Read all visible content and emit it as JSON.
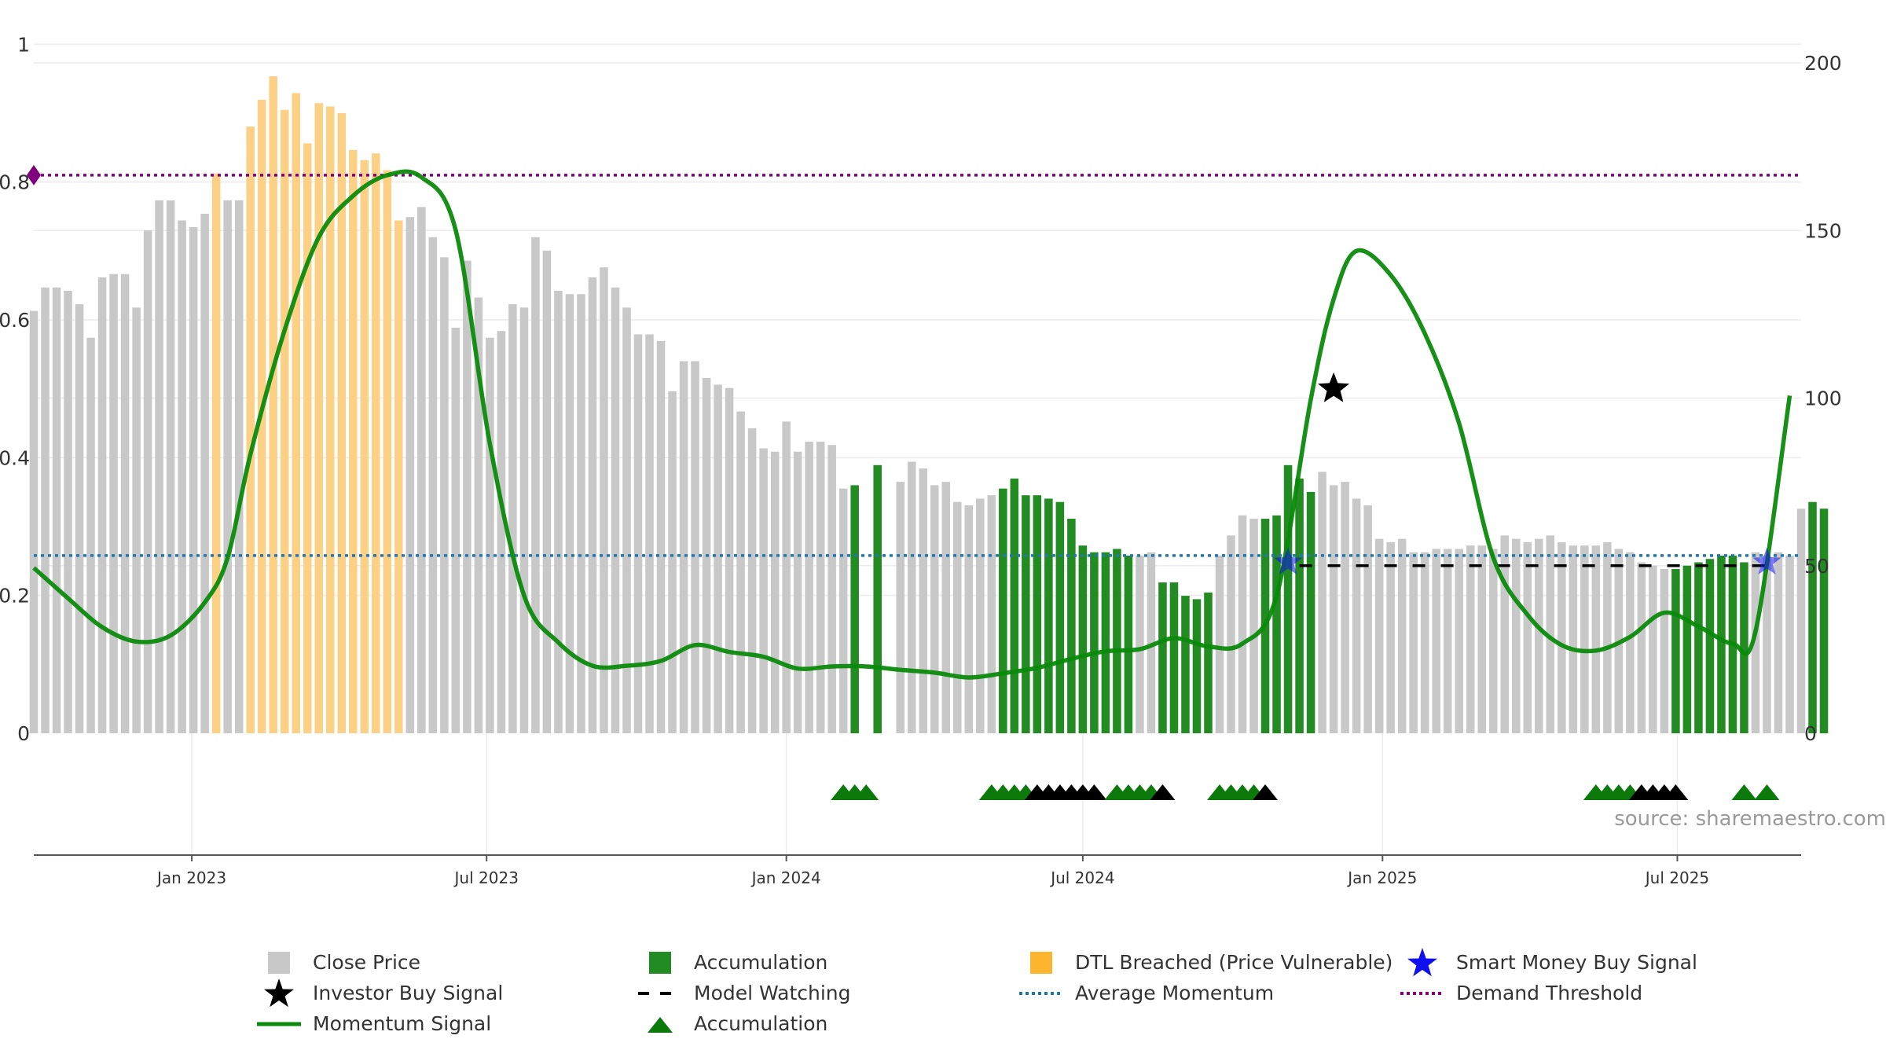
{
  "chart_data": {
    "type": "bar",
    "source": "source: sharemaestro.com",
    "left_axis": {
      "ticks": [
        0,
        0.2,
        0.4,
        0.6,
        0.8,
        1
      ],
      "labels": [
        "0",
        "0.2",
        "0.4",
        "0.6",
        "0.8",
        "1"
      ],
      "range": [
        0,
        0.973
      ]
    },
    "right_axis": {
      "ticks": [
        0,
        50,
        100,
        150,
        200
      ],
      "labels": [
        "0",
        "50",
        "100",
        "150",
        "200"
      ],
      "range": [
        0,
        200
      ]
    },
    "x_ticks": [
      {
        "date": "2023-01-01",
        "label": "Jan 2023"
      },
      {
        "date": "2023-07-01",
        "label": "Jul 2023"
      },
      {
        "date": "2024-01-01",
        "label": "Jan 2024"
      },
      {
        "date": "2024-07-01",
        "label": "Jul 2024"
      },
      {
        "date": "2025-01-01",
        "label": "Jan 2025"
      },
      {
        "date": "2025-07-01",
        "label": "Jul 2025"
      }
    ],
    "x_range": [
      "2022-09-26",
      "2025-09-15"
    ],
    "colors": {
      "close": "#c8c8c8",
      "accumulation": "#228b22",
      "dtl": "#fdd185",
      "momentum": "#0a8a0a",
      "average": "#1f77b4",
      "demand": "#800080",
      "investor": "#000000",
      "smart": "#1010ee",
      "triangle_green": "#0b7a0b",
      "triangle_black": "#000000"
    },
    "close_first_week": "2022-09-26",
    "close_prices": [
      126,
      133,
      133,
      132,
      128,
      118,
      136,
      137,
      137,
      127,
      150,
      159,
      159,
      153,
      151,
      155,
      167,
      159,
      159,
      181,
      189,
      196,
      186,
      191,
      176,
      188,
      187,
      185,
      174,
      171,
      173,
      168,
      153,
      154,
      157,
      148,
      142,
      121,
      141,
      130,
      118,
      120,
      128,
      127,
      148,
      144,
      132,
      131,
      131,
      136,
      139,
      133,
      127,
      119,
      119,
      117,
      102,
      111,
      111,
      106,
      104,
      103,
      96,
      91,
      85,
      84,
      93,
      84,
      87,
      87,
      86,
      73,
      74,
      0,
      80,
      79,
      75,
      81,
      79,
      74,
      75,
      69,
      68,
      70,
      71,
      73,
      76,
      71,
      71,
      70,
      69,
      64,
      56,
      54,
      54,
      55,
      53,
      53,
      54,
      45,
      45,
      41,
      40,
      42,
      53,
      59,
      65,
      64,
      64,
      65,
      80,
      76,
      72,
      78,
      74,
      75,
      70,
      68,
      58,
      57,
      58,
      54,
      54,
      55,
      55,
      55,
      56,
      56,
      55,
      59,
      58,
      57,
      58,
      59,
      57,
      56,
      56,
      56,
      57,
      55,
      54,
      51,
      50,
      49,
      49,
      50,
      51,
      52,
      53,
      53,
      51,
      54,
      53,
      54,
      53,
      67,
      69,
      67
    ],
    "bar_types": "GGGGGGGGGGGGGGGGDGGDDDDDDDDDDDDDDGGGGGGGGGGGGGGGGGGGGGGGGGGGGGGGGGGGGGGGAAAXGGGGGGGGGAAAAAAAAAAAAGGAAAAAGGGGAAAAAGGGGGGGGGGGGGGGGGGGGGGGGGGGGGGGAAAAAAAGGGGGAAGGGG",
    "momentum": [
      [
        "2022-09-26",
        0.24
      ],
      [
        "2022-10-17",
        0.196
      ],
      [
        "2022-11-07",
        0.154
      ],
      [
        "2022-11-28",
        0.133
      ],
      [
        "2022-12-19",
        0.142
      ],
      [
        "2023-01-09",
        0.19
      ],
      [
        "2023-01-23",
        0.255
      ],
      [
        "2023-02-06",
        0.405
      ],
      [
        "2023-02-27",
        0.585
      ],
      [
        "2023-03-20",
        0.72
      ],
      [
        "2023-04-10",
        0.78
      ],
      [
        "2023-05-01",
        0.81
      ],
      [
        "2023-05-22",
        0.807
      ],
      [
        "2023-06-12",
        0.73
      ],
      [
        "2023-07-03",
        0.42
      ],
      [
        "2023-07-24",
        0.2
      ],
      [
        "2023-08-14",
        0.132
      ],
      [
        "2023-09-04",
        0.098
      ],
      [
        "2023-09-25",
        0.098
      ],
      [
        "2023-10-16",
        0.105
      ],
      [
        "2023-11-06",
        0.128
      ],
      [
        "2023-11-27",
        0.118
      ],
      [
        "2023-12-18",
        0.111
      ],
      [
        "2024-01-08",
        0.094
      ],
      [
        "2024-01-29",
        0.097
      ],
      [
        "2024-02-19",
        0.097
      ],
      [
        "2024-03-11",
        0.092
      ],
      [
        "2024-04-01",
        0.088
      ],
      [
        "2024-04-22",
        0.081
      ],
      [
        "2024-05-13",
        0.087
      ],
      [
        "2024-06-03",
        0.095
      ],
      [
        "2024-06-24",
        0.108
      ],
      [
        "2024-07-15",
        0.119
      ],
      [
        "2024-08-05",
        0.122
      ],
      [
        "2024-08-26",
        0.138
      ],
      [
        "2024-09-16",
        0.126
      ],
      [
        "2024-10-07",
        0.13
      ],
      [
        "2024-10-28",
        0.2
      ],
      [
        "2024-11-18",
        0.485
      ],
      [
        "2024-12-02",
        0.63
      ],
      [
        "2024-12-16",
        0.7
      ],
      [
        "2025-01-06",
        0.665
      ],
      [
        "2025-01-27",
        0.58
      ],
      [
        "2025-02-17",
        0.45
      ],
      [
        "2025-03-10",
        0.255
      ],
      [
        "2025-03-31",
        0.172
      ],
      [
        "2025-04-21",
        0.128
      ],
      [
        "2025-05-12",
        0.12
      ],
      [
        "2025-06-02",
        0.14
      ],
      [
        "2025-06-23",
        0.175
      ],
      [
        "2025-07-14",
        0.155
      ],
      [
        "2025-08-04",
        0.13
      ],
      [
        "2025-08-18",
        0.148
      ],
      [
        "2025-09-08",
        0.49
      ]
    ],
    "average_momentum": 0.258,
    "demand_threshold": 0.81,
    "model_watching": {
      "from": "2024-11-11",
      "to": "2025-09-01",
      "level": 50
    },
    "investor_buy_signals": [
      {
        "date": "2024-12-02",
        "value": 0.5
      }
    ],
    "smart_money_buy_signals": [
      {
        "date": "2024-11-04",
        "value": 51
      },
      {
        "date": "2025-08-25",
        "value": 51
      }
    ],
    "triangles": [
      [
        "2024-02-05",
        "G"
      ],
      [
        "2024-02-12",
        "G"
      ],
      [
        "2024-02-19",
        "G"
      ],
      [
        "2024-05-06",
        "G"
      ],
      [
        "2024-05-13",
        "G"
      ],
      [
        "2024-05-20",
        "G"
      ],
      [
        "2024-05-27",
        "G"
      ],
      [
        "2024-06-03",
        "K"
      ],
      [
        "2024-06-10",
        "K"
      ],
      [
        "2024-06-17",
        "K"
      ],
      [
        "2024-06-24",
        "K"
      ],
      [
        "2024-07-01",
        "K"
      ],
      [
        "2024-07-08",
        "K"
      ],
      [
        "2024-07-22",
        "G"
      ],
      [
        "2024-07-29",
        "G"
      ],
      [
        "2024-08-05",
        "G"
      ],
      [
        "2024-08-12",
        "G"
      ],
      [
        "2024-08-19",
        "K"
      ],
      [
        "2024-09-23",
        "G"
      ],
      [
        "2024-09-30",
        "G"
      ],
      [
        "2024-10-07",
        "G"
      ],
      [
        "2024-10-14",
        "G"
      ],
      [
        "2024-10-21",
        "K"
      ],
      [
        "2025-05-12",
        "G"
      ],
      [
        "2025-05-19",
        "G"
      ],
      [
        "2025-05-26",
        "G"
      ],
      [
        "2025-06-02",
        "G"
      ],
      [
        "2025-06-09",
        "K"
      ],
      [
        "2025-06-16",
        "K"
      ],
      [
        "2025-06-23",
        "K"
      ],
      [
        "2025-06-30",
        "K"
      ],
      [
        "2025-08-11",
        "G"
      ],
      [
        "2025-08-25",
        "G"
      ]
    ]
  },
  "legend": [
    {
      "label": "Close Price",
      "icon": "square",
      "color": "#c8c8c8"
    },
    {
      "label": "Accumulation",
      "icon": "square",
      "color": "#228b22"
    },
    {
      "label": "DTL Breached (Price Vulnerable)",
      "icon": "square",
      "color": "#fdb42f"
    },
    {
      "label": "Smart Money Buy Signal",
      "icon": "star",
      "color": "#1010ee"
    },
    {
      "label": "Investor Buy Signal",
      "icon": "star",
      "color": "#000000"
    },
    {
      "label": "Model Watching",
      "icon": "dashed",
      "color": "#000000"
    },
    {
      "label": "Average Momentum",
      "icon": "dotted",
      "color": "#1f77b4"
    },
    {
      "label": "Demand Threshold",
      "icon": "dotted",
      "color": "#800080"
    },
    {
      "label": "Momentum Signal",
      "icon": "line",
      "color": "#0a8a0a"
    },
    {
      "label": "Accumulation",
      "icon": "triangle",
      "color": "#0b7a0b"
    }
  ]
}
